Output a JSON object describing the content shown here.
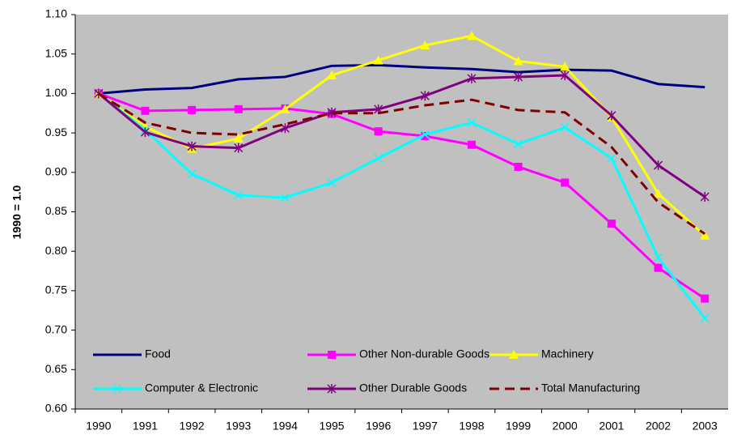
{
  "chart_data": {
    "type": "line",
    "y_label": "1990 = 1.0",
    "categories": [
      "1990",
      "1991",
      "1992",
      "1993",
      "1994",
      "1995",
      "1996",
      "1997",
      "1998",
      "1999",
      "2000",
      "2001",
      "2002",
      "2003"
    ],
    "ylim": [
      0.6,
      1.1
    ],
    "yticks": [
      {
        "value": 0.6,
        "label": "0.60"
      },
      {
        "value": 0.65,
        "label": "0.65"
      },
      {
        "value": 0.7,
        "label": "0.70"
      },
      {
        "value": 0.75,
        "label": "0.75"
      },
      {
        "value": 0.8,
        "label": "0.80"
      },
      {
        "value": 0.85,
        "label": "0.85"
      },
      {
        "value": 0.9,
        "label": "0.90"
      },
      {
        "value": 0.95,
        "label": "0.95"
      },
      {
        "value": 1.0,
        "label": "1.00"
      },
      {
        "value": 1.05,
        "label": "1.05"
      },
      {
        "value": 1.1,
        "label": "1.10"
      }
    ],
    "background": "#c0c0c0",
    "legend": "bottom-inside",
    "series": [
      {
        "name": "Food",
        "color": "#000080",
        "marker": "none",
        "dash": false,
        "values": [
          1.0,
          1.005,
          1.007,
          1.018,
          1.021,
          1.035,
          1.036,
          1.033,
          1.031,
          1.027,
          1.03,
          1.029,
          1.012,
          1.008
        ]
      },
      {
        "name": "Other Non-durable Goods",
        "color": "#ff00ff",
        "marker": "square",
        "dash": false,
        "values": [
          1.0,
          0.978,
          0.979,
          0.98,
          0.981,
          0.974,
          0.952,
          0.946,
          0.935,
          0.907,
          0.887,
          0.835,
          0.779,
          0.74
        ]
      },
      {
        "name": "Machinery",
        "color": "#ffff00",
        "marker": "triangle",
        "dash": false,
        "values": [
          1.0,
          0.958,
          0.93,
          0.943,
          0.98,
          1.023,
          1.042,
          1.061,
          1.073,
          1.041,
          1.034,
          0.97,
          0.873,
          0.82
        ]
      },
      {
        "name": "Computer & Electronic",
        "color": "#00ffff",
        "marker": "x",
        "dash": false,
        "values": [
          1.0,
          0.954,
          0.898,
          0.871,
          0.868,
          0.887,
          0.918,
          0.948,
          0.963,
          0.936,
          0.957,
          0.918,
          0.792,
          0.715
        ]
      },
      {
        "name": "Other Durable Goods",
        "color": "#800080",
        "marker": "star",
        "dash": false,
        "values": [
          1.0,
          0.951,
          0.933,
          0.931,
          0.956,
          0.976,
          0.98,
          0.997,
          1.019,
          1.021,
          1.023,
          0.972,
          0.909,
          0.869
        ]
      },
      {
        "name": "Total Manufacturing",
        "color": "#800000",
        "marker": "none",
        "dash": true,
        "values": [
          1.0,
          0.963,
          0.95,
          0.948,
          0.961,
          0.975,
          0.975,
          0.985,
          0.992,
          0.979,
          0.976,
          0.932,
          0.862,
          0.822
        ]
      }
    ]
  }
}
